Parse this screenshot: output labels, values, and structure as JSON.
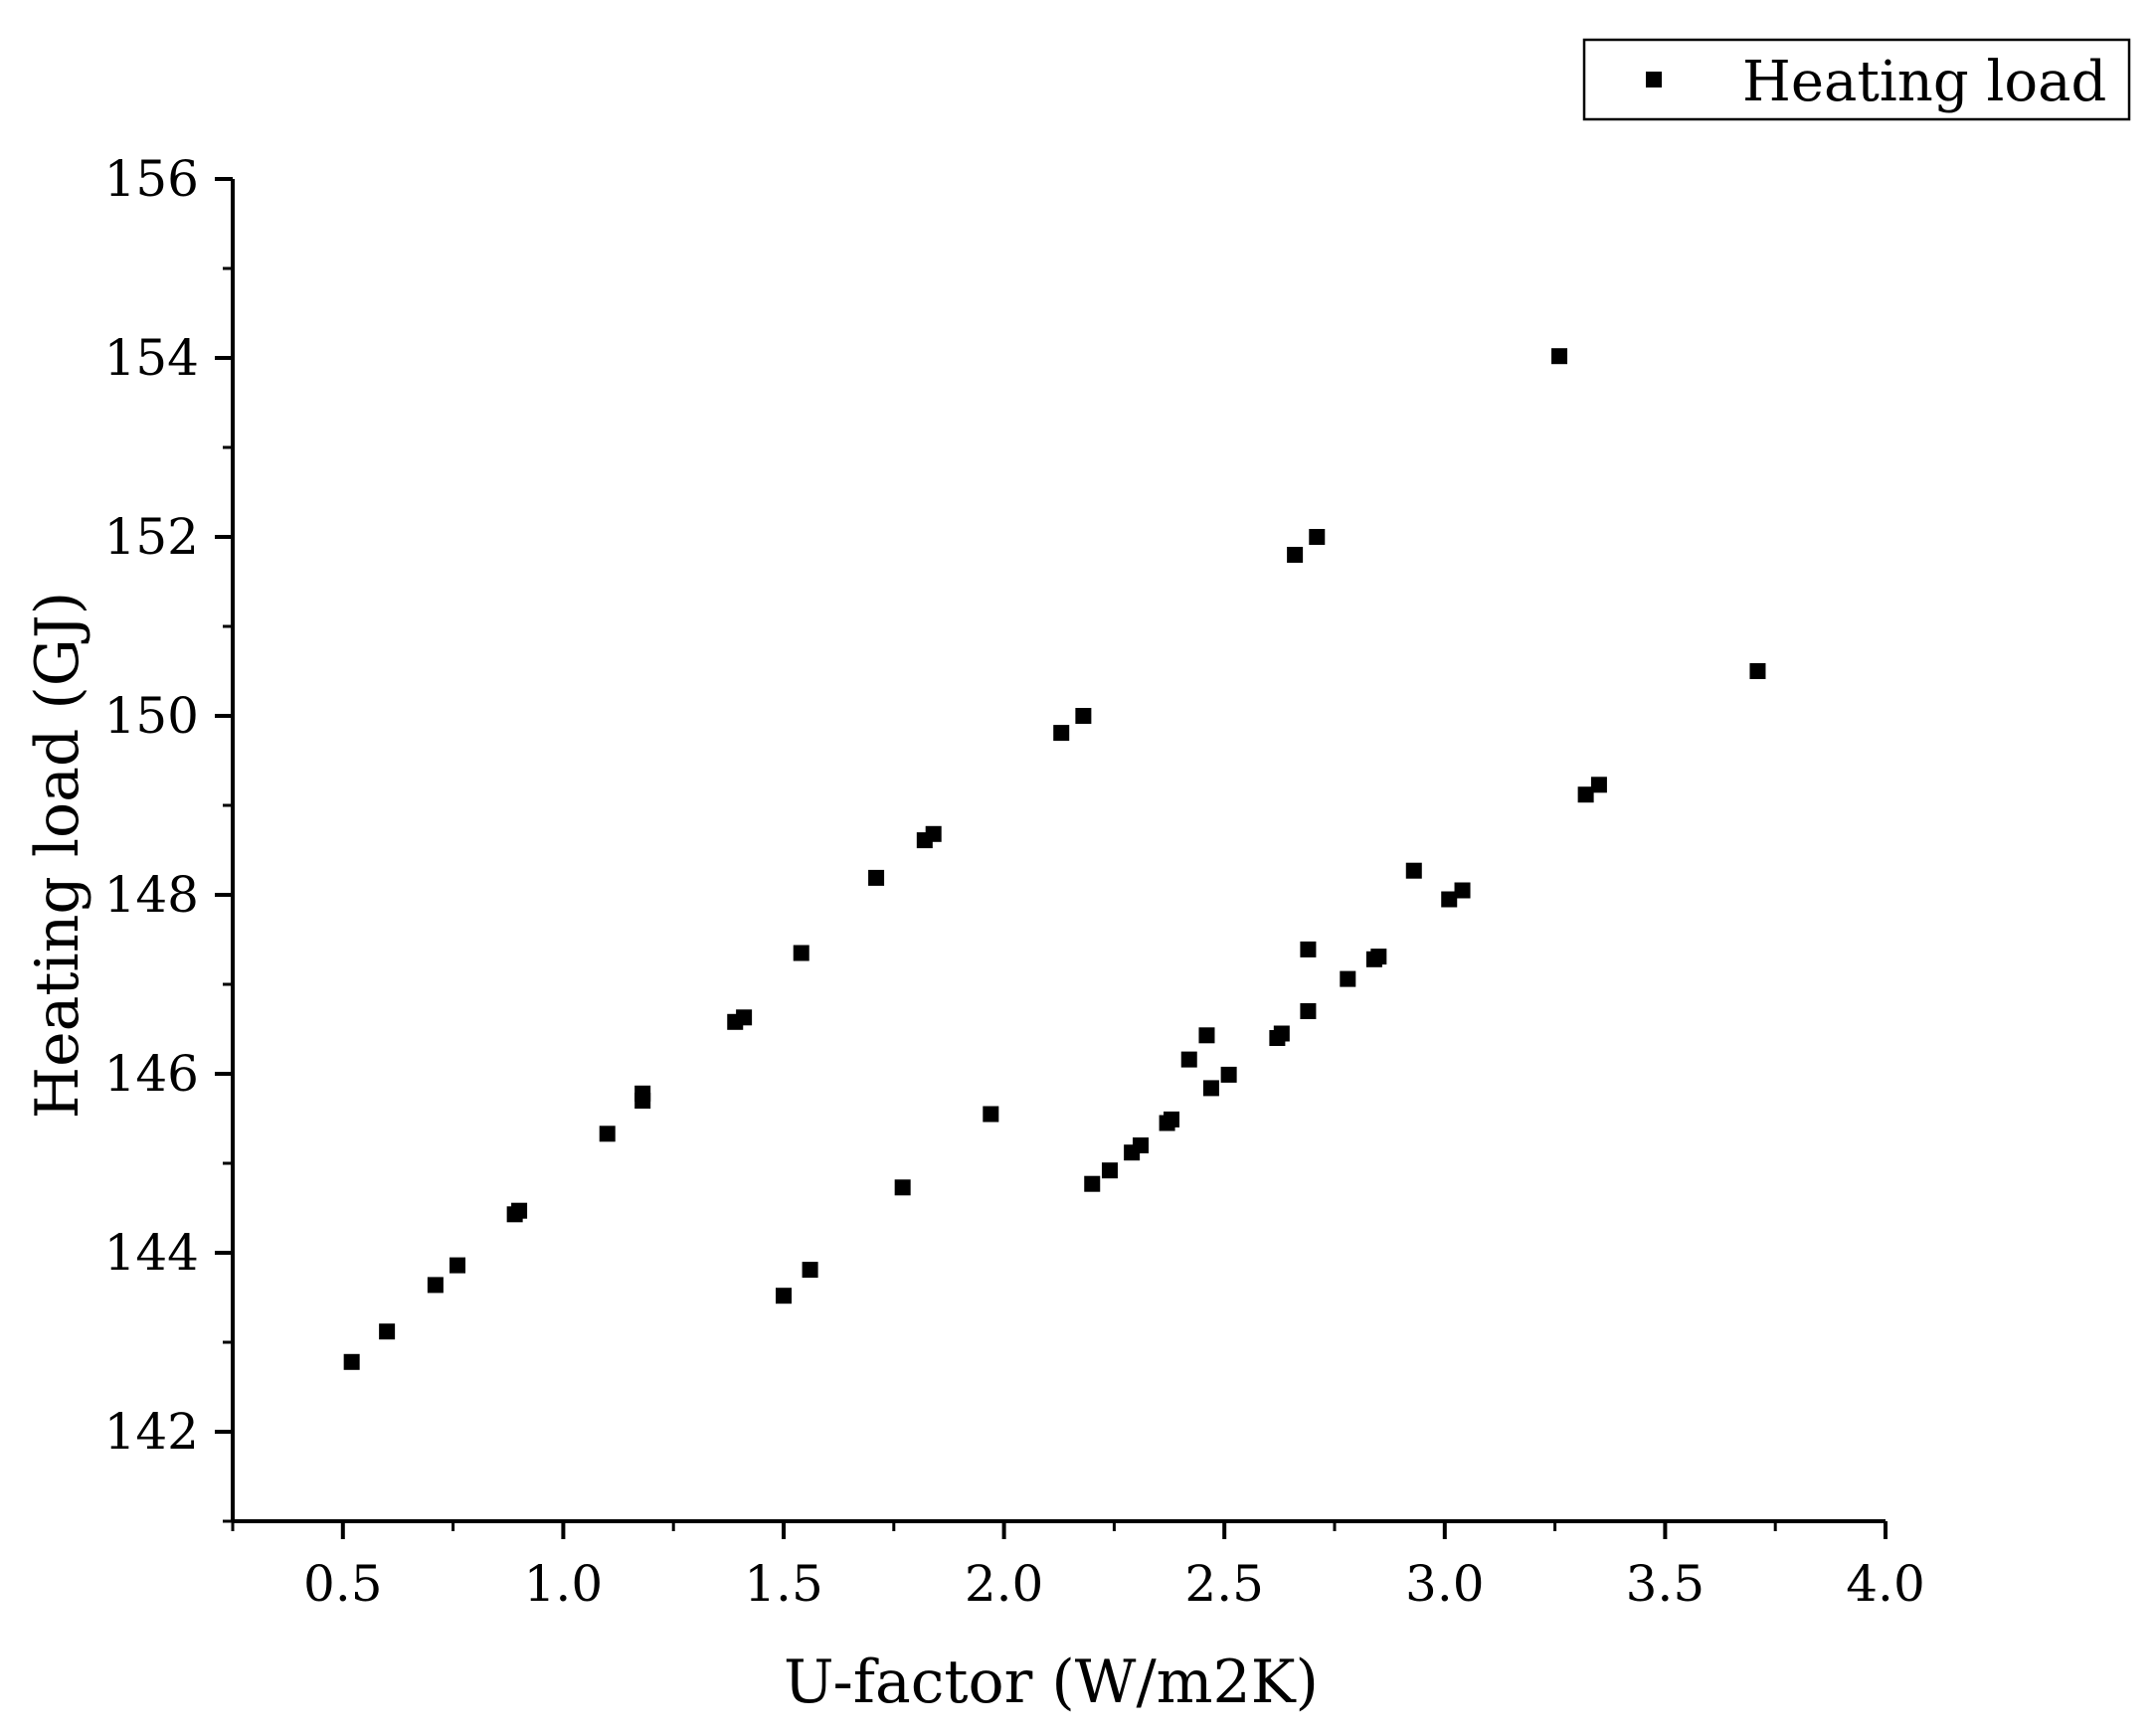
{
  "chart_data": {
    "type": "scatter",
    "xlabel": "U-factor (W/m2K)",
    "ylabel": "Heating load (GJ)",
    "xlim": [
      0.25,
      4.0
    ],
    "ylim": [
      141,
      156
    ],
    "x_ticks": [
      0.5,
      1.0,
      1.5,
      2.0,
      2.5,
      3.0,
      3.5,
      4.0
    ],
    "x_tick_labels": [
      "0.5",
      "1.0",
      "1.5",
      "2.0",
      "2.5",
      "3.0",
      "3.5",
      "4.0"
    ],
    "y_ticks": [
      142,
      144,
      146,
      148,
      150,
      152,
      154,
      156
    ],
    "y_tick_labels": [
      "142",
      "144",
      "146",
      "148",
      "150",
      "152",
      "154",
      "156"
    ],
    "grid": false,
    "legend": {
      "position": "top-right",
      "marker": "square"
    },
    "series": [
      {
        "name": "Heating load",
        "color": "#000000",
        "marker": "square",
        "points": [
          [
            0.52,
            142.78
          ],
          [
            0.6,
            143.12
          ],
          [
            0.71,
            143.64
          ],
          [
            0.76,
            143.86
          ],
          [
            0.89,
            144.43
          ],
          [
            0.9,
            144.47
          ],
          [
            1.1,
            145.33
          ],
          [
            1.18,
            145.78
          ],
          [
            1.18,
            145.7
          ],
          [
            1.39,
            146.58
          ],
          [
            1.41,
            146.63
          ],
          [
            1.54,
            147.35
          ],
          [
            1.71,
            148.19
          ],
          [
            1.82,
            148.61
          ],
          [
            1.84,
            148.68
          ],
          [
            2.13,
            149.81
          ],
          [
            2.18,
            150.0
          ],
          [
            2.66,
            151.8
          ],
          [
            2.71,
            152.0
          ],
          [
            3.26,
            154.02
          ],
          [
            3.71,
            150.5
          ],
          [
            1.5,
            143.52
          ],
          [
            1.56,
            143.81
          ],
          [
            1.77,
            144.73
          ],
          [
            1.97,
            145.55
          ],
          [
            2.2,
            144.77
          ],
          [
            2.24,
            144.92
          ],
          [
            2.29,
            145.12
          ],
          [
            2.31,
            145.2
          ],
          [
            2.37,
            145.45
          ],
          [
            2.38,
            145.49
          ],
          [
            2.42,
            146.16
          ],
          [
            2.46,
            146.43
          ],
          [
            2.47,
            145.84
          ],
          [
            2.51,
            145.99
          ],
          [
            2.62,
            146.4
          ],
          [
            2.63,
            146.45
          ],
          [
            2.69,
            146.7
          ],
          [
            2.69,
            147.39
          ],
          [
            2.78,
            147.06
          ],
          [
            2.84,
            147.28
          ],
          [
            2.85,
            147.31
          ],
          [
            2.93,
            148.27
          ],
          [
            3.01,
            147.95
          ],
          [
            3.04,
            148.05
          ],
          [
            3.32,
            149.12
          ],
          [
            3.35,
            149.23
          ]
        ]
      }
    ]
  }
}
